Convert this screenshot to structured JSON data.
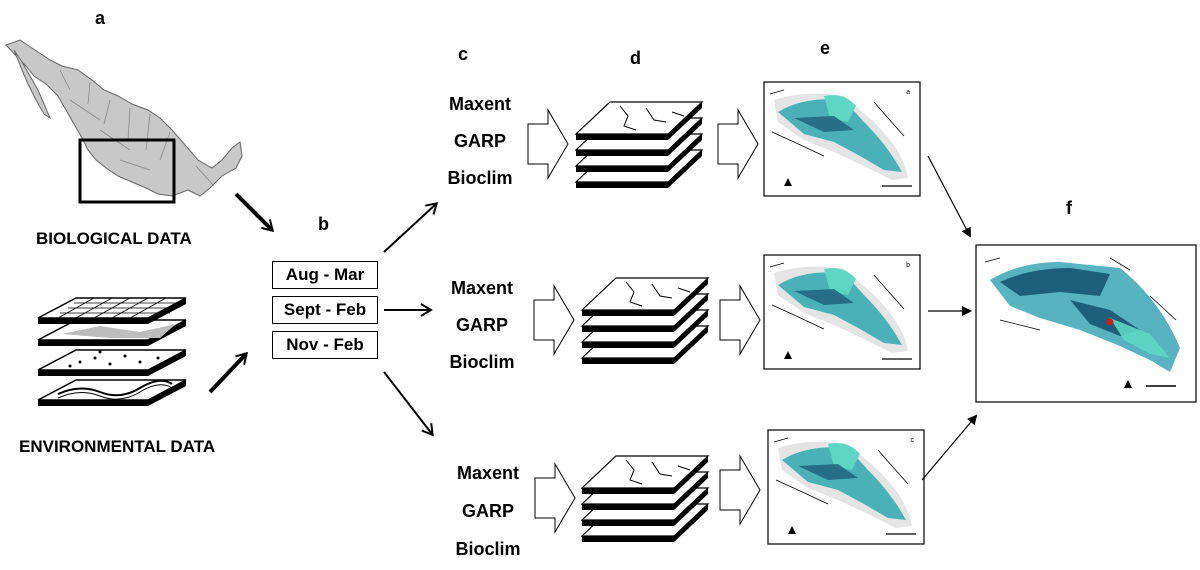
{
  "panels": {
    "a": "a",
    "b": "b",
    "c": "c",
    "d": "d",
    "e": "e",
    "f": "f"
  },
  "inputs": {
    "biological": "BIOLOGICAL DATA",
    "environmental": "ENVIRONMENTAL DATA"
  },
  "seasons": [
    "Aug - Mar",
    "Sept - Feb",
    "Nov - Feb"
  ],
  "algorithms": [
    "Maxent",
    "GARP",
    "Bioclim"
  ],
  "map_corner_labels": [
    "a",
    "b",
    "c"
  ],
  "colors": {
    "land": "#c8c8c8",
    "teal_light": "#5fd6c4",
    "teal_mid": "#2fa8b0",
    "teal_dark": "#1d5f7a",
    "consensus_point": "#d11a1a"
  }
}
